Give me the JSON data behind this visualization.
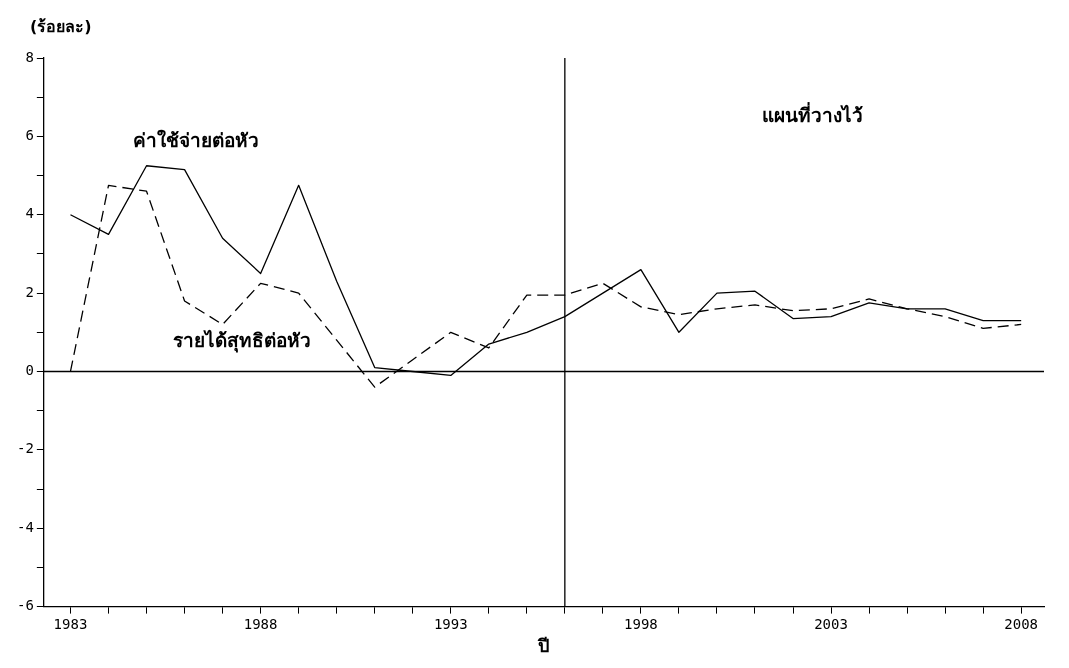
{
  "chart_data": {
    "type": "line",
    "ylabel": "(ร้อยละ)",
    "xlabel": "ปี",
    "x": [
      1983,
      1984,
      1985,
      1986,
      1987,
      1988,
      1989,
      1990,
      1991,
      1992,
      1993,
      1994,
      1995,
      1996,
      1997,
      1998,
      1999,
      2000,
      2001,
      2002,
      2003,
      2004,
      2005,
      2006,
      2007,
      2008
    ],
    "series": [
      {
        "name": "ค่าใช้จ่ายต่อหัว",
        "color": "#000000",
        "line_style": "solid",
        "values": [
          4.0,
          3.5,
          5.25,
          5.15,
          3.4,
          2.5,
          4.75,
          2.3,
          0.1,
          0.0,
          -0.1,
          0.7,
          1.0,
          1.4,
          2.0,
          2.6,
          1.0,
          2.0,
          2.05,
          1.35,
          1.4,
          1.75,
          1.6,
          1.6,
          1.3,
          1.3
        ]
      },
      {
        "name": "รายได้สุทธิต่อหัว",
        "color": "#000000",
        "line_style": "dashed",
        "values": [
          0.0,
          4.75,
          4.6,
          1.8,
          1.2,
          2.25,
          2.0,
          0.8,
          -0.4,
          0.3,
          1.0,
          0.6,
          1.95,
          1.95,
          2.25,
          1.65,
          1.45,
          1.6,
          1.7,
          1.55,
          1.6,
          1.85,
          1.6,
          1.4,
          1.1,
          1.2
        ]
      }
    ],
    "annotations": [
      "แผนที่วางไว้"
    ],
    "ref_lines": [
      {
        "axis": "x",
        "value": 1996
      },
      {
        "axis": "y",
        "value": 0
      }
    ],
    "xlim": [
      1982.3,
      2008.6
    ],
    "xticks": [
      1983,
      {
        "value": 1984,
        "label": null
      },
      {
        "value": 1985,
        "label": null
      },
      {
        "value": 1986,
        "label": null
      },
      {
        "value": 1987,
        "label": null
      },
      1988,
      {
        "value": 1989,
        "label": null
      },
      {
        "value": 1990,
        "label": null
      },
      {
        "value": 1991,
        "label": null
      },
      {
        "value": 1992,
        "label": null
      },
      1993,
      {
        "value": 1994,
        "label": null
      },
      {
        "value": 1995,
        "label": null
      },
      {
        "value": 1996,
        "label": null
      },
      {
        "value": 1997,
        "label": null
      },
      1998,
      {
        "value": 1999,
        "label": null
      },
      {
        "value": 2000,
        "label": null
      },
      {
        "value": 2001,
        "label": null
      },
      {
        "value": 2002,
        "label": null
      },
      2003,
      {
        "value": 2004,
        "label": null
      },
      {
        "value": 2005,
        "label": null
      },
      {
        "value": 2006,
        "label": null
      },
      {
        "value": 2007,
        "label": null
      },
      2008
    ],
    "ylim": [
      -6,
      8
    ],
    "yticks": [
      -6,
      {
        "value": -5,
        "label": null
      },
      -4,
      {
        "value": -3,
        "label": null
      },
      -2,
      {
        "value": -1,
        "label": null
      },
      0,
      {
        "value": 1,
        "label": null
      },
      2,
      {
        "value": 3,
        "label": null
      },
      4,
      {
        "value": 5,
        "label": null
      },
      6,
      {
        "value": 7,
        "label": null
      },
      8
    ],
    "grid": false,
    "legend": false,
    "marker": "none"
  }
}
